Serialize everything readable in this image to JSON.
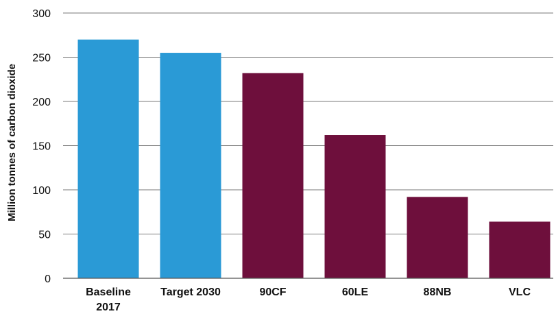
{
  "chart_data": {
    "type": "bar",
    "ylabel": "Million tonnes of carbon dioxide",
    "xlabel": "",
    "categories": [
      [
        "Baseline",
        "2017"
      ],
      [
        "Target 2030"
      ],
      [
        "90CF"
      ],
      [
        "60LE"
      ],
      [
        "88NB"
      ],
      [
        "VLC"
      ]
    ],
    "values": [
      270,
      255,
      232,
      162,
      92,
      64
    ],
    "colors": [
      "#2a9ad6",
      "#2a9ad6",
      "#6e0f3c",
      "#6e0f3c",
      "#6e0f3c",
      "#6e0f3c"
    ],
    "ylim": [
      0,
      300
    ],
    "yticks": [
      0,
      50,
      100,
      150,
      200,
      250,
      300
    ],
    "grid": true,
    "legend": "none"
  }
}
